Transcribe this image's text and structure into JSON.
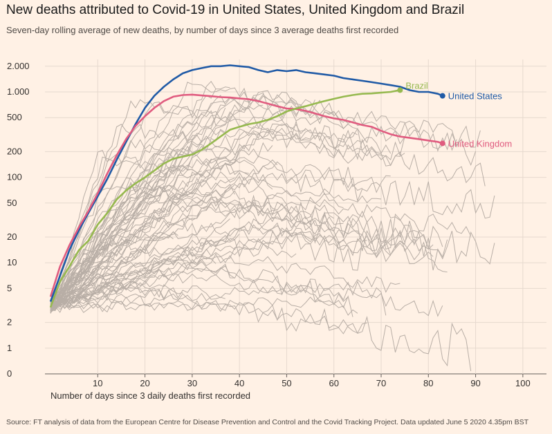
{
  "chart_data": {
    "type": "line",
    "title": "New deaths attributed to Covid-19 in United States, United Kingdom and Brazil",
    "subtitle": "Seven-day rolling average of new deaths, by number of days since 3 average deaths first recorded",
    "xlabel": "Number of days since 3 daily deaths first recorded",
    "ylabel": "",
    "y_scale": "log",
    "xlim": [
      0,
      105
    ],
    "x_ticks": [
      10,
      20,
      30,
      40,
      50,
      60,
      70,
      80,
      90,
      100
    ],
    "x_tick_labels": [
      "10",
      "20",
      "30",
      "40",
      "50",
      "60",
      "70",
      "80",
      "90",
      "100"
    ],
    "y_ticks": [
      0,
      1,
      2,
      5,
      10,
      20,
      50,
      100,
      200,
      500,
      1000,
      2000
    ],
    "y_tick_labels": [
      "0",
      "1",
      "2",
      "5",
      "10",
      "20",
      "50",
      "100",
      "200",
      "500",
      "1.000",
      "2.000"
    ],
    "grid": true,
    "source": "Source: FT analysis of data from the European Centre for Disease Prevention and Control and the Covid Tracking Project. Data updated June 5 2020 4.35pm BST",
    "series": [
      {
        "name": "United States",
        "color": "#1f5aa6",
        "x": [
          0,
          2,
          4,
          6,
          8,
          10,
          12,
          14,
          16,
          18,
          20,
          22,
          24,
          26,
          28,
          30,
          32,
          34,
          36,
          38,
          40,
          42,
          44,
          46,
          48,
          50,
          52,
          54,
          56,
          58,
          60,
          62,
          64,
          66,
          68,
          70,
          72,
          74,
          76,
          78,
          80,
          82,
          83
        ],
        "y": [
          3.5,
          7,
          14,
          24,
          38,
          60,
          95,
          160,
          260,
          420,
          650,
          900,
          1150,
          1400,
          1650,
          1800,
          1900,
          2000,
          2000,
          2050,
          2000,
          1950,
          1800,
          1700,
          1800,
          1750,
          1800,
          1700,
          1650,
          1600,
          1550,
          1450,
          1400,
          1350,
          1300,
          1250,
          1200,
          1150,
          1050,
          1000,
          1000,
          950,
          900
        ]
      },
      {
        "name": "United Kingdom",
        "color": "#e05b7f",
        "x": [
          0,
          2,
          4,
          6,
          8,
          10,
          12,
          14,
          16,
          18,
          20,
          22,
          24,
          26,
          28,
          30,
          32,
          34,
          36,
          38,
          40,
          42,
          44,
          46,
          48,
          50,
          52,
          54,
          56,
          58,
          60,
          62,
          64,
          66,
          68,
          70,
          72,
          74,
          76,
          78,
          80,
          82,
          83
        ],
        "y": [
          4,
          9,
          16,
          26,
          40,
          65,
          110,
          180,
          280,
          400,
          520,
          650,
          780,
          880,
          920,
          930,
          910,
          890,
          870,
          860,
          840,
          820,
          780,
          730,
          680,
          640,
          630,
          600,
          560,
          520,
          490,
          470,
          440,
          410,
          390,
          350,
          320,
          300,
          290,
          280,
          270,
          260,
          250
        ]
      },
      {
        "name": "Brazil",
        "color": "#96b94f",
        "x": [
          0,
          2,
          4,
          6,
          8,
          10,
          12,
          14,
          16,
          18,
          20,
          22,
          24,
          26,
          28,
          30,
          32,
          34,
          36,
          38,
          40,
          42,
          44,
          46,
          48,
          50,
          52,
          54,
          56,
          58,
          60,
          62,
          64,
          66,
          68,
          70,
          72,
          74
        ],
        "y": [
          3,
          6,
          9,
          14,
          18,
          28,
          38,
          55,
          70,
          85,
          100,
          120,
          145,
          165,
          175,
          185,
          210,
          250,
          300,
          360,
          390,
          420,
          440,
          470,
          520,
          590,
          640,
          680,
          730,
          780,
          830,
          880,
          920,
          950,
          960,
          980,
          1000,
          1050
        ]
      }
    ]
  }
}
